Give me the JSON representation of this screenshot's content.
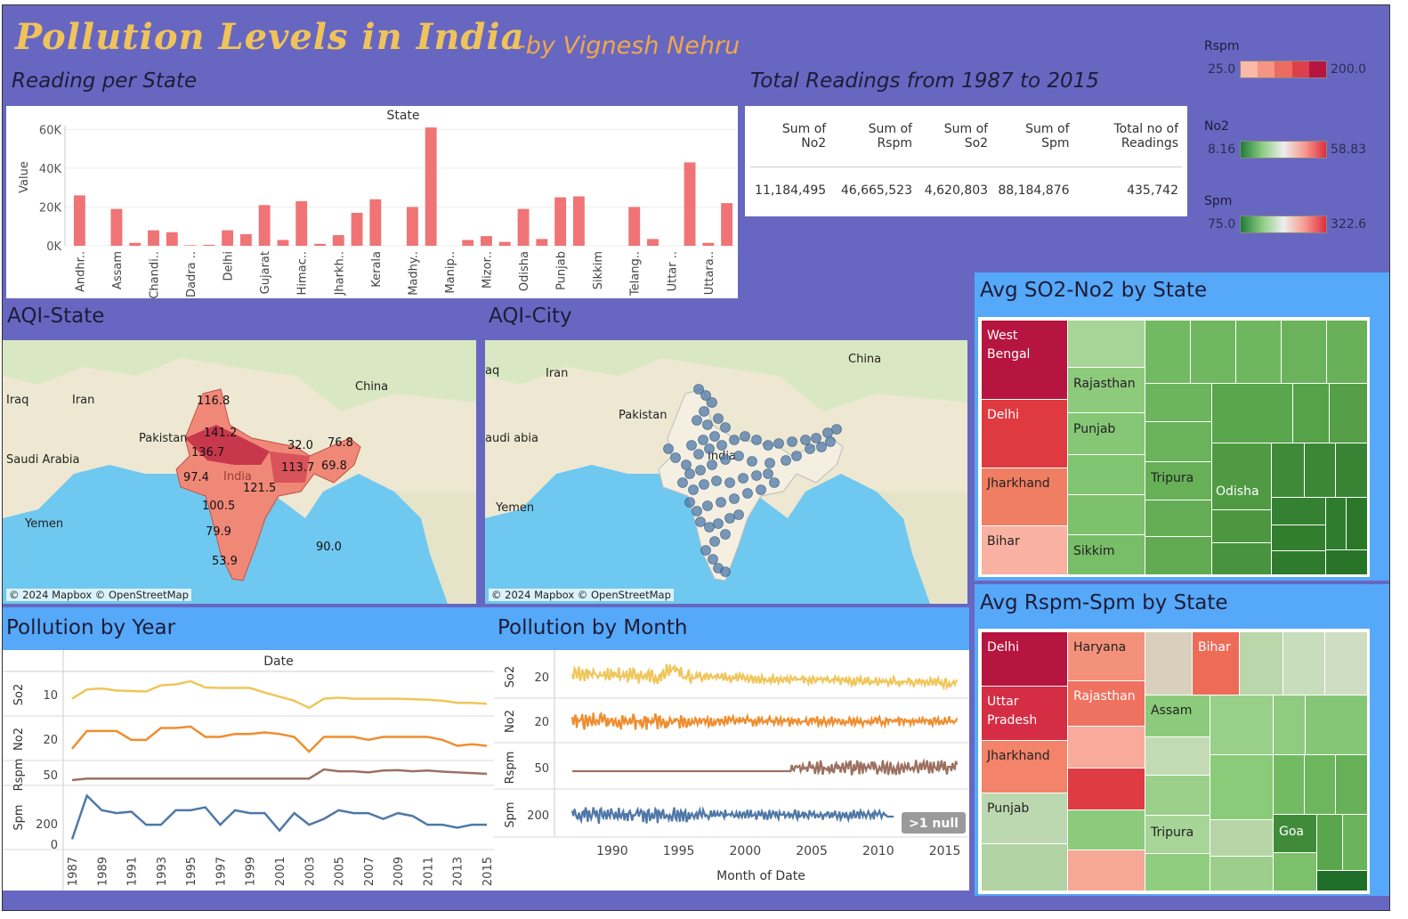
{
  "header": {
    "title": "Pollution Levels in India",
    "byline": "-by Vignesh Nehru",
    "reading_per_state": "Reading per State",
    "total_readings_title": "Total Readings  from 1987 to 2015"
  },
  "kpi": {
    "headers": [
      "Sum of No2",
      "Sum of Rspm",
      "Sum of So2",
      "Sum of Spm",
      "Total no of Readings"
    ],
    "values": [
      "11,184,495",
      "46,665,523",
      "4,620,803",
      "88,184,876",
      "435,742"
    ]
  },
  "legends": {
    "rspm": {
      "title": "Rspm",
      "min": "25.0",
      "max": "200.0"
    },
    "no2": {
      "title": "No2",
      "min": "8.16",
      "max": "58.83"
    },
    "spm": {
      "title": "Spm",
      "min": "75.0",
      "max": "322.6"
    }
  },
  "colors": {
    "background": "#6767c2",
    "bar": "#f07475",
    "so2": "#efc65a",
    "no2": "#ef8d2f",
    "rspm": "#9c7061",
    "spm": "#4f78a8",
    "panel_blue": "#56a8f8"
  },
  "sections": {
    "aqi_state": "AQI-State",
    "aqi_city": "AQI-City",
    "year": "Pollution by Year",
    "month": "Pollution by Month",
    "so2no2": "Avg SO2-No2 by State",
    "rspmspm": "Avg Rspm-Spm by State"
  },
  "map": {
    "credit": "© 2024 Mapbox © OpenStreetMap",
    "place_labels_state": [
      "Iraq",
      "Iran",
      "China",
      "Pakistan",
      "Saudi Arabia",
      "Yemen",
      "India"
    ],
    "place_labels_city": [
      "aq",
      "Iran",
      "China",
      "Pakistan",
      "audi abia",
      "Yemen",
      "India"
    ],
    "state_values": [
      "116.8",
      "141.2",
      "136.7",
      "32.0",
      "76.8",
      "97.4",
      "113.7",
      "69.8",
      "121.5",
      "100.5",
      "79.9",
      "90.0",
      "53.9"
    ]
  },
  "chart_data": [
    {
      "type": "bar",
      "title": "State",
      "ylabel": "Value",
      "ylim": [
        0,
        62000
      ],
      "yticks": [
        "0K",
        "20K",
        "40K",
        "60K"
      ],
      "categories": [
        "Andhr..",
        "",
        "Assam",
        "",
        "Chandi..",
        "",
        "Dadra ..",
        "",
        "Delhi",
        "",
        "Gujarat",
        "",
        "Himac..",
        "",
        "Jharkh..",
        "",
        "Kerala",
        "",
        "Madhy..",
        "",
        "Manip..",
        "",
        "Mizor..",
        "",
        "Odisha",
        "",
        "Punjab",
        "",
        "Sikkim",
        "",
        "Telang..",
        "",
        "Uttar ..",
        "",
        "Uttara..",
        ""
      ],
      "values": [
        26000,
        0,
        19000,
        1500,
        8000,
        7000,
        300,
        500,
        8000,
        6000,
        21000,
        3000,
        23000,
        1000,
        5500,
        17000,
        24000,
        0,
        20000,
        61000,
        0,
        3000,
        5000,
        2000,
        19000,
        3500,
        25000,
        25500,
        0,
        0,
        20000,
        3500,
        0,
        43000,
        1500,
        22000
      ]
    },
    {
      "type": "line",
      "title": "Pollution by Year",
      "xlabel": "Date",
      "x": [
        "1987",
        "1988",
        "1989",
        "1990",
        "1991",
        "1992",
        "1993",
        "1994",
        "1995",
        "1996",
        "1997",
        "1998",
        "1999",
        "2000",
        "2001",
        "2002",
        "2003",
        "2004",
        "2005",
        "2006",
        "2007",
        "2008",
        "2009",
        "2010",
        "2011",
        "2012",
        "2013",
        "2014",
        "2015"
      ],
      "xticks": [
        "1987",
        "1989",
        "1991",
        "1993",
        "1995",
        "1997",
        "1999",
        "2001",
        "2003",
        "2005",
        "2007",
        "2009",
        "2011",
        "2013",
        "2015"
      ],
      "series": [
        {
          "name": "So2",
          "ytick": "10",
          "values": [
            10,
            19,
            20,
            18,
            17.5,
            17,
            23,
            24,
            27,
            21,
            20.5,
            20.5,
            20.5,
            16,
            12,
            8,
            1,
            10,
            11,
            10,
            10,
            10,
            10,
            9.5,
            9,
            8,
            6,
            6,
            5
          ]
        },
        {
          "name": "No2",
          "ytick": "20",
          "values": [
            20,
            26,
            26,
            26,
            23,
            23,
            27,
            27,
            27.5,
            24,
            24,
            25,
            25,
            25.5,
            25,
            24,
            19,
            24,
            24,
            24,
            23,
            24,
            24,
            24,
            24,
            23,
            21,
            21.5,
            21
          ]
        },
        {
          "name": "Rspm",
          "ytick": "50",
          "values": [
            36,
            40,
            40,
            40,
            40,
            40,
            40,
            40,
            40,
            40,
            40,
            40,
            40,
            40,
            40,
            40,
            40,
            65,
            60,
            60,
            57,
            62,
            63,
            60,
            62,
            59,
            57,
            55,
            53
          ]
        },
        {
          "name": "Spm",
          "yticks": [
            "0",
            "200"
          ],
          "values": [
            150,
            300,
            250,
            240,
            245,
            200,
            200,
            250,
            250,
            260,
            200,
            250,
            240,
            240,
            180,
            240,
            200,
            220,
            250,
            240,
            240,
            220,
            240,
            230,
            200,
            200,
            190,
            200,
            200
          ]
        }
      ]
    },
    {
      "type": "line",
      "title": "Pollution by Month",
      "xlabel": "Month of Date",
      "xticks": [
        "1990",
        "1995",
        "2000",
        "2005",
        "2010",
        "2015"
      ],
      "xlim": [
        1987,
        2015.9
      ],
      "series": [
        {
          "name": "So2",
          "ytick": "20"
        },
        {
          "name": "No2",
          "ytick": "20"
        },
        {
          "name": "Rspm",
          "ytick": "50"
        },
        {
          "name": "Spm",
          "ytick": "200"
        }
      ],
      "annotation": ">1 null"
    },
    {
      "type": "heatmap",
      "title": "Avg SO2-No2 by State",
      "labels": [
        "West Bengal",
        "Delhi",
        "Jharkhand",
        "Bihar",
        "Rajasthan",
        "Punjab",
        "Sikkim",
        "Tripura",
        "Odisha"
      ]
    },
    {
      "type": "heatmap",
      "title": "Avg Rspm-Spm by State",
      "labels": [
        "Delhi",
        "Uttar Pradesh",
        "Jharkhand",
        "Punjab",
        "Haryana",
        "Rajasthan",
        "Bihar",
        "Assam",
        "Tripura",
        "Goa"
      ]
    }
  ]
}
